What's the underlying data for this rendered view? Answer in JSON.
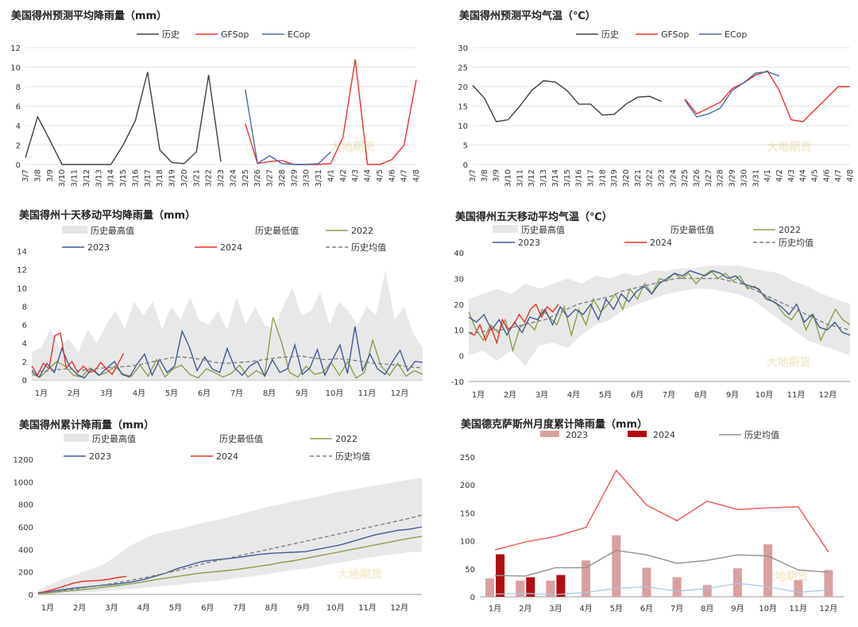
{
  "watermark": "大地期货",
  "charts": [
    {
      "type": "line",
      "title": "美国得州预测平均降雨量（mm）",
      "legend": [
        "历史",
        "GFSop",
        "ECop"
      ],
      "y_ticks": [
        "0",
        "2",
        "4",
        "6",
        "8",
        "10",
        "12"
      ],
      "ylim": [
        0,
        12
      ],
      "x_ticks": [
        "3/7",
        "3/8",
        "3/9",
        "3/10",
        "3/11",
        "3/12",
        "3/13",
        "3/14",
        "3/15",
        "3/16",
        "3/17",
        "3/18",
        "3/19",
        "3/20",
        "3/21",
        "3/22",
        "3/23",
        "3/24",
        "3/25",
        "3/26",
        "3/27",
        "3/28",
        "3/29",
        "3/30",
        "3/31",
        "4/1",
        "4/2",
        "4/3",
        "4/4",
        "4/5",
        "4/6",
        "4/7",
        "4/8"
      ],
      "series": [
        {
          "name": "历史",
          "color": "#404040",
          "start": 0,
          "values": [
            0.7,
            4.9,
            2.5,
            0.0,
            0.0,
            0.0,
            0.0,
            0.0,
            2.0,
            4.5,
            9.5,
            1.5,
            0.2,
            0.1,
            1.3,
            9.2,
            0.3
          ]
        },
        {
          "name": "GFSop",
          "color": "#e8312c",
          "start": 18,
          "values": [
            4.2,
            0.1,
            0.3,
            0.4,
            0.0,
            0.0,
            0.0,
            0.1,
            2.8,
            10.8,
            0.0,
            0.0,
            0.5,
            2.0,
            8.7
          ]
        },
        {
          "name": "ECop",
          "color": "#4a6aa8",
          "start": 18,
          "values": [
            7.7,
            0.1,
            0.9,
            0.1,
            0.0,
            0.0,
            0.1,
            1.3
          ]
        }
      ]
    },
    {
      "type": "line",
      "title": "美国得州预测平均气温（℃）",
      "legend": [
        "历史",
        "GFSop",
        "ECop"
      ],
      "y_ticks": [
        "0",
        "5",
        "10",
        "15",
        "20",
        "25",
        "30"
      ],
      "ylim": [
        0,
        30
      ],
      "x_ticks": [
        "3/7",
        "3/8",
        "3/9",
        "3/10",
        "3/11",
        "3/12",
        "3/13",
        "3/14",
        "3/15",
        "3/16",
        "3/17",
        "3/18",
        "3/19",
        "3/20",
        "3/21",
        "3/22",
        "3/23",
        "3/24",
        "3/25",
        "3/26",
        "3/27",
        "3/28",
        "3/29",
        "3/30",
        "3/31",
        "4/1",
        "4/2",
        "4/3",
        "4/4",
        "4/5",
        "4/6",
        "4/7",
        "4/8"
      ],
      "series": [
        {
          "name": "历史",
          "color": "#404040",
          "start": 0,
          "values": [
            20.3,
            17.0,
            11.0,
            11.5,
            15.0,
            19.0,
            21.5,
            21.2,
            19.0,
            15.5,
            15.5,
            12.7,
            12.9,
            15.5,
            17.3,
            17.5,
            16.2
          ]
        },
        {
          "name": "GFSop",
          "color": "#e8312c",
          "start": 18,
          "values": [
            16.8,
            13.0,
            14.5,
            16.0,
            19.5,
            21.0,
            23.0,
            24.0,
            19.0,
            11.5,
            11.0,
            14.0,
            17.0,
            20.0,
            20.0
          ]
        },
        {
          "name": "ECop",
          "color": "#4a6aa8",
          "start": 18,
          "values": [
            16.5,
            12.2,
            13.0,
            14.5,
            19.0,
            21.0,
            23.5,
            23.8,
            22.7
          ]
        }
      ]
    },
    {
      "type": "line",
      "title": "美国得州十天移动平均降雨量（mm）",
      "legend": [
        "历史最高值",
        "历史最低值",
        "2022",
        "2023",
        "2024",
        "历史均值"
      ],
      "y_ticks": [
        "0",
        "2",
        "4",
        "6",
        "8",
        "10",
        "12",
        "14"
      ],
      "ylim": [
        0,
        14
      ],
      "x_ticks": [
        "1月",
        "2月",
        "3月",
        "4月",
        "5月",
        "6月",
        "7月",
        "8月",
        "9月",
        "10月",
        "11月",
        "12月"
      ],
      "band_max": [
        3.0,
        3.5,
        5.5,
        3.5,
        4.5,
        3.0,
        5.5,
        4.0,
        6.0,
        7.5,
        5.5,
        8.5,
        7.0,
        8.5,
        5.5,
        8.0,
        6.5,
        9.0,
        6.5,
        6.0,
        7.5,
        5.5,
        9.0,
        6.0,
        8.0,
        6.0,
        5.5,
        8.0,
        10.0,
        7.0,
        7.5,
        9.5,
        6.0,
        8.5,
        7.5,
        6.0,
        8.0,
        7.0,
        12.0,
        6.5,
        8.0,
        5.0,
        3.5
      ],
      "series": [
        {
          "name": "2022",
          "color": "#8aa04a",
          "dash": false,
          "values": [
            0.6,
            0.3,
            1.2,
            2.0,
            1.5,
            0.5,
            0.3,
            1.3,
            0.5,
            0.8,
            1.5,
            0.6,
            0.4,
            1.6,
            0.4,
            2.2,
            0.3,
            1.2,
            1.6,
            0.6,
            0.2,
            1.2,
            0.8,
            0.3,
            0.7,
            1.6,
            0.3,
            1.0,
            0.5,
            6.8,
            4.2,
            0.8,
            0.3,
            1.5,
            0.6,
            0.8,
            1.9,
            0.5,
            2.0,
            0.2,
            0.8,
            4.3,
            1.5,
            0.5,
            1.8,
            0.4,
            1.0,
            0.6
          ]
        },
        {
          "name": "2023",
          "color": "#3f5b96",
          "dash": false,
          "values": [
            0.9,
            0.3,
            1.8,
            0.8,
            3.4,
            1.5,
            0.6,
            0.2,
            1.2,
            0.5,
            1.3,
            2.0,
            0.6,
            0.3,
            1.7,
            2.8,
            0.5,
            2.2,
            0.8,
            1.5,
            5.3,
            3.5,
            1.0,
            2.5,
            1.2,
            0.8,
            3.4,
            1.3,
            0.5,
            1.5,
            2.0,
            0.4,
            2.2,
            0.8,
            1.2,
            3.8,
            0.6,
            1.3,
            3.3,
            0.5,
            2.2,
            3.8,
            0.7,
            5.8,
            1.0,
            2.8,
            1.2,
            0.6,
            2.0,
            3.2,
            1.0,
            2.0,
            1.9
          ]
        },
        {
          "name": "2024",
          "color": "#e8312c",
          "dash": false,
          "values": [
            1.5,
            0.5,
            1.8,
            1.2,
            4.8,
            5.1,
            1.3,
            2.0,
            0.8,
            1.5,
            0.8,
            1.0,
            1.9,
            1.2,
            0.6,
            1.7,
            2.9
          ]
        },
        {
          "name": "历史均值",
          "color": "#808080",
          "dash": true,
          "values": [
            1.0,
            0.9,
            1.1,
            1.2,
            1.0,
            1.2,
            1.3,
            1.4,
            1.5,
            1.7,
            2.0,
            2.3,
            2.5,
            2.4,
            2.2,
            1.9,
            1.8,
            1.9,
            2.0,
            2.2,
            2.4,
            2.5,
            2.6,
            2.4,
            2.2,
            2.3,
            2.2,
            2.0,
            1.8,
            1.7,
            1.6,
            1.4,
            1.3
          ]
        }
      ]
    },
    {
      "type": "line",
      "title": "美国得州五天移动平均气温（℃）",
      "legend": [
        "历史最高值",
        "历史最低值",
        "2022",
        "2023",
        "2024",
        "历史均值"
      ],
      "y_ticks": [
        "-10",
        "0",
        "10",
        "20",
        "30",
        "40"
      ],
      "ylim": [
        -10,
        40
      ],
      "x_ticks": [
        "1月",
        "2月",
        "3月",
        "4月",
        "5月",
        "6月",
        "7月",
        "8月",
        "9月",
        "10月",
        "11月",
        "12月"
      ],
      "band_max": [
        22,
        24,
        26,
        24,
        28,
        26,
        28,
        30,
        28,
        31,
        30,
        32,
        31,
        33,
        33,
        34,
        34,
        35,
        35,
        35,
        34,
        33,
        32,
        29,
        27,
        24,
        22,
        20
      ],
      "band_min": [
        0,
        2,
        -2,
        2,
        -4,
        4,
        5,
        3,
        8,
        12,
        14,
        18,
        20,
        22,
        24,
        25,
        26,
        26,
        25,
        24,
        22,
        18,
        14,
        10,
        6,
        4,
        2,
        0
      ],
      "series": [
        {
          "name": "2022",
          "color": "#8aa04a",
          "dash": false,
          "values": [
            17,
            10,
            6,
            12,
            9,
            14,
            2,
            11,
            13,
            10,
            18,
            15,
            12,
            19,
            8,
            18,
            12,
            22,
            17,
            20,
            24,
            18,
            26,
            22,
            28,
            24,
            30,
            29,
            32,
            30,
            32,
            28,
            31,
            33,
            30,
            32,
            29,
            31,
            26,
            27,
            24,
            22,
            20,
            16,
            14,
            18,
            10,
            16,
            6,
            12,
            18,
            14,
            12
          ]
        },
        {
          "name": "2023",
          "color": "#3f5b96",
          "dash": false,
          "values": [
            15,
            13,
            16,
            10,
            14,
            8,
            13,
            9,
            15,
            14,
            18,
            12,
            19,
            15,
            18,
            16,
            20,
            14,
            22,
            18,
            24,
            21,
            25,
            27,
            24,
            28,
            30,
            32,
            31,
            33,
            32,
            31,
            33,
            32,
            30,
            31,
            28,
            27,
            26,
            22,
            21,
            19,
            16,
            20,
            13,
            16,
            11,
            10,
            13,
            9,
            8
          ]
        },
        {
          "name": "2024",
          "color": "#e8312c",
          "dash": false,
          "values": [
            9,
            8,
            12,
            6,
            11,
            5,
            14,
            10,
            12,
            16,
            13,
            18,
            20,
            15,
            19,
            17,
            20
          ]
        },
        {
          "name": "历史均值",
          "color": "#808080",
          "dash": true,
          "values": [
            9,
            9,
            10,
            10,
            11,
            12,
            13,
            14,
            16,
            18,
            20,
            21,
            22,
            23,
            25,
            26,
            27,
            28,
            29,
            30,
            30,
            30,
            30,
            30,
            29,
            28,
            26,
            24,
            22,
            20,
            18,
            16,
            14,
            12,
            11,
            10
          ]
        }
      ]
    },
    {
      "type": "line",
      "title": "美国得州累计降雨量（mm）",
      "legend": [
        "历史最高值",
        "历史最低值",
        "2022",
        "2023",
        "2024",
        "历史均值"
      ],
      "y_ticks": [
        "0",
        "200",
        "400",
        "600",
        "800",
        "1000",
        "1200"
      ],
      "ylim": [
        0,
        1200
      ],
      "x_ticks": [
        "1月",
        "2月",
        "3月",
        "4月",
        "5月",
        "6月",
        "7月",
        "8月",
        "9月",
        "10月",
        "11月",
        "12月"
      ],
      "band_max": [
        40,
        90,
        140,
        180,
        220,
        260,
        330,
        420,
        480,
        530,
        560,
        580,
        610,
        640,
        660,
        690,
        720,
        750,
        780,
        800,
        830,
        850,
        870,
        900,
        920,
        940,
        960,
        980,
        1000,
        1020,
        1035
      ],
      "band_min": [
        0,
        5,
        10,
        15,
        20,
        28,
        35,
        45,
        55,
        65,
        75,
        85,
        100,
        110,
        120,
        135,
        150,
        165,
        180,
        200,
        215,
        230,
        250,
        270,
        290,
        310,
        330,
        345,
        360,
        375,
        380
      ],
      "series": [
        {
          "name": "2022",
          "color": "#8aa04a",
          "dash": false,
          "values": [
            5,
            15,
            25,
            35,
            45,
            55,
            70,
            80,
            95,
            110,
            130,
            145,
            160,
            175,
            190,
            200,
            210,
            220,
            235,
            250,
            265,
            285,
            300,
            320,
            340,
            360,
            380,
            400,
            420,
            440,
            460,
            480,
            500,
            515
          ]
        },
        {
          "name": "2023",
          "color": "#3f5b96",
          "dash": false,
          "values": [
            15,
            25,
            40,
            55,
            65,
            75,
            85,
            95,
            110,
            130,
            160,
            190,
            230,
            260,
            290,
            305,
            315,
            325,
            340,
            355,
            365,
            370,
            375,
            380,
            400,
            420,
            440,
            470,
            500,
            530,
            550,
            570,
            580,
            600
          ]
        },
        {
          "name": "2024",
          "color": "#e8312c",
          "dash": false,
          "values": [
            10,
            30,
            50,
            75,
            100,
            115,
            120,
            125,
            135,
            150,
            160
          ]
        },
        {
          "name": "历史均值",
          "color": "#808080",
          "dash": true,
          "values": [
            10,
            25,
            40,
            60,
            80,
            100,
            125,
            150,
            180,
            210,
            245,
            280,
            310,
            340,
            370,
            400,
            430,
            460,
            490,
            520,
            550,
            580,
            610,
            640,
            670,
            705
          ]
        }
      ]
    },
    {
      "type": "bar",
      "title": "美国德克萨斯州月度累计降雨量（mm）",
      "legend": [
        "2023",
        "2024",
        "历史均值"
      ],
      "y_ticks": [
        "0",
        "50",
        "100",
        "150",
        "200",
        "250"
      ],
      "ylim": [
        0,
        250
      ],
      "categories": [
        "1月",
        "2月",
        "3月",
        "4月",
        "5月",
        "6月",
        "7月",
        "8月",
        "9月",
        "10月",
        "11月",
        "12月"
      ],
      "bars_2023": [
        33,
        29,
        29,
        65,
        110,
        52,
        35,
        21,
        51,
        94,
        30,
        48
      ],
      "bars_2024": [
        76,
        35,
        39
      ],
      "hist_avg": [
        38,
        37,
        52,
        52,
        83,
        75,
        60,
        65,
        75,
        73,
        48,
        44
      ],
      "hist_max": [
        84,
        98,
        108,
        124,
        226,
        164,
        136,
        171,
        156,
        159,
        161,
        80
      ],
      "hist_min": [
        5,
        6,
        4,
        8,
        15,
        18,
        10,
        15,
        24,
        18,
        8,
        12
      ],
      "colors": {
        "2023": "#d9a0a0",
        "2024": "#b00d12",
        "avg": "#909090",
        "max": "#ee5555",
        "min": "#a9c4e3"
      }
    }
  ]
}
